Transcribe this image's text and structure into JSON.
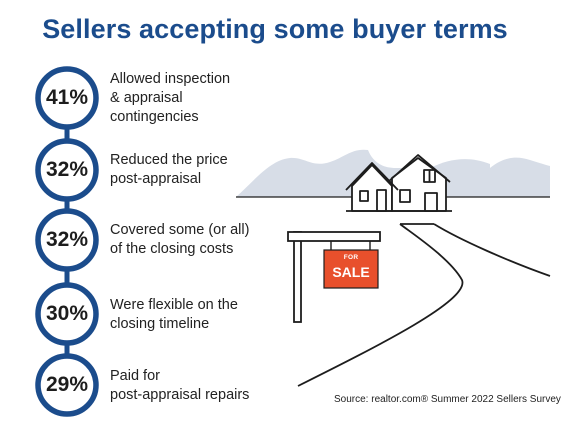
{
  "title": "Sellers accepting some buyer terms",
  "colors": {
    "title": "#1b4c8c",
    "ring": "#1b4c8c",
    "mountains": "#d7dde7",
    "sign": "#e8502c"
  },
  "stats": [
    {
      "value": "41%",
      "lines": [
        "Allowed inspection",
        "& appraisal",
        "contingencies"
      ]
    },
    {
      "value": "32%",
      "lines": [
        "Reduced the price",
        "post-appraisal"
      ]
    },
    {
      "value": "32%",
      "lines": [
        "Covered some (or all)",
        "of the closing costs"
      ]
    },
    {
      "value": "30%",
      "lines": [
        "Were flexible on the",
        "closing timeline"
      ]
    },
    {
      "value": "29%",
      "lines": [
        "Paid for",
        "post-appraisal repairs"
      ]
    }
  ],
  "sign": {
    "top": "FOR",
    "bottom": "SALE"
  },
  "illustration": {
    "icons": [
      "house-icon",
      "for-sale-sign-icon",
      "road-icon",
      "mountains-icon"
    ]
  },
  "source": "Source: realtor.com® Summer 2022 Sellers Survey"
}
